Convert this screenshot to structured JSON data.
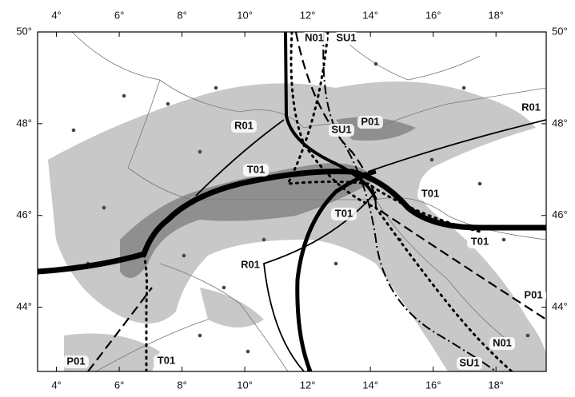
{
  "axes": {
    "lon_range": [
      3.4,
      19.6
    ],
    "lat_range": [
      42.6,
      50
    ],
    "lon_ticks": [
      {
        "value": 4,
        "label": "4°"
      },
      {
        "value": 6,
        "label": "6°"
      },
      {
        "value": 8,
        "label": "8°"
      },
      {
        "value": 10,
        "label": "10°"
      },
      {
        "value": 12,
        "label": "12°"
      },
      {
        "value": 14,
        "label": "14°"
      },
      {
        "value": 16,
        "label": "16°"
      },
      {
        "value": 18,
        "label": "18°"
      }
    ],
    "lat_ticks": [
      {
        "value": 44,
        "label": "44°"
      },
      {
        "value": 46,
        "label": "46°"
      },
      {
        "value": 48,
        "label": "48°"
      },
      {
        "value": 50,
        "label": "50°"
      }
    ]
  },
  "profile_labels": [
    "N01",
    "SU1",
    "R01",
    "R01",
    "SU1",
    "P01",
    "T01",
    "T01",
    "T01",
    "T01",
    "R01",
    "P01",
    "N01",
    "SU1",
    "P01",
    "T01"
  ]
}
